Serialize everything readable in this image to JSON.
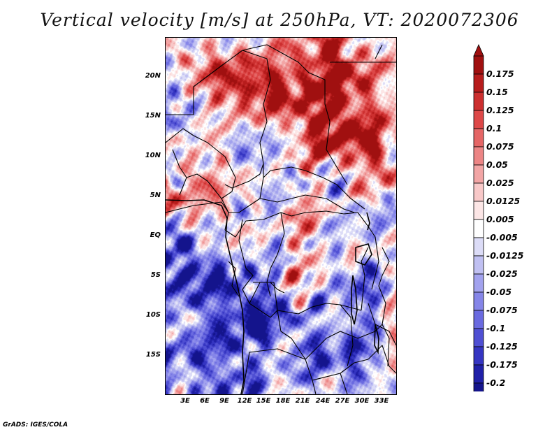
{
  "title": "Vertical velocity [m/s] at 250hPa, VT: 2020072306",
  "credit": "GrADS: IGES/COLA",
  "latitude_labels": [
    "20N",
    "15N",
    "10N",
    "5N",
    "EQ",
    "5S",
    "10S",
    "15S"
  ],
  "longitude_labels": [
    "3E",
    "6E",
    "9E",
    "12E",
    "15E",
    "18E",
    "21E",
    "24E",
    "27E",
    "30E",
    "33E"
  ],
  "map_extent": {
    "lon": [
      0,
      35
    ],
    "lat": [
      -20,
      25
    ]
  },
  "colorbar": {
    "levels": [
      "0.175",
      "0.15",
      "0.125",
      "0.1",
      "0.075",
      "0.05",
      "0.025",
      "0.0125",
      "0.005",
      "-0.005",
      "-0.0125",
      "-0.025",
      "-0.05",
      "-0.075",
      "-0.1",
      "-0.125",
      "-0.175",
      "-0.2"
    ],
    "colors": [
      "#a01010",
      "#b71c1c",
      "#cc2f2f",
      "#dd4848",
      "#e56666",
      "#ec8585",
      "#f2a5a5",
      "#f8c8c8",
      "#fce6e6",
      "#ffffff",
      "#dcdcf7",
      "#c0c0f2",
      "#a2a2ee",
      "#8585e8",
      "#6a6ae0",
      "#4f4fd3",
      "#3535c2",
      "#2020a8",
      "#14148c"
    ]
  },
  "colors": {
    "positive": "#c8242c",
    "negative": "#3c3cd0",
    "border_lines": "#000000"
  }
}
